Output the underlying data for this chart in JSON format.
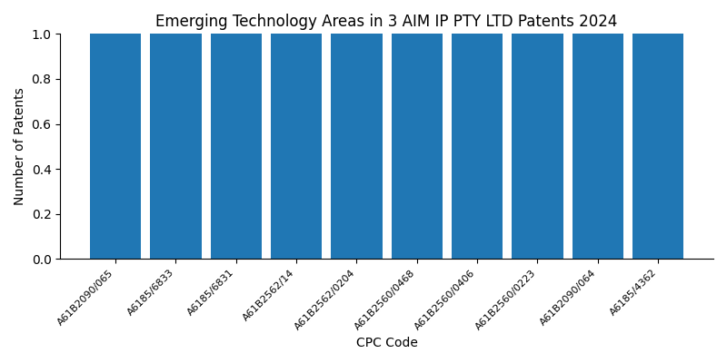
{
  "title": "Emerging Technology Areas in 3 AIM IP PTY LTD Patents 2024",
  "xlabel": "CPC Code",
  "ylabel": "Number of Patents",
  "categories": [
    "A61B2090/065",
    "A6185/6833",
    "A6185/6831",
    "A61B2562/14",
    "A61B2562/0204",
    "A61B2560/0468",
    "A61B2560/0406",
    "A61B2560/0223",
    "A61B2090/064",
    "A6185/4362"
  ],
  "values": [
    1,
    1,
    1,
    1,
    1,
    1,
    1,
    1,
    1,
    1
  ],
  "bar_color": "#2077b4",
  "ylim": [
    0,
    1.0
  ],
  "yticks": [
    0.0,
    0.2,
    0.4,
    0.6,
    0.8,
    1.0
  ],
  "figsize": [
    8.0,
    4.0
  ],
  "dpi": 100,
  "title_fontsize": 12,
  "bar_width": 0.85,
  "tick_fontsize": 8,
  "label_fontsize": 10
}
